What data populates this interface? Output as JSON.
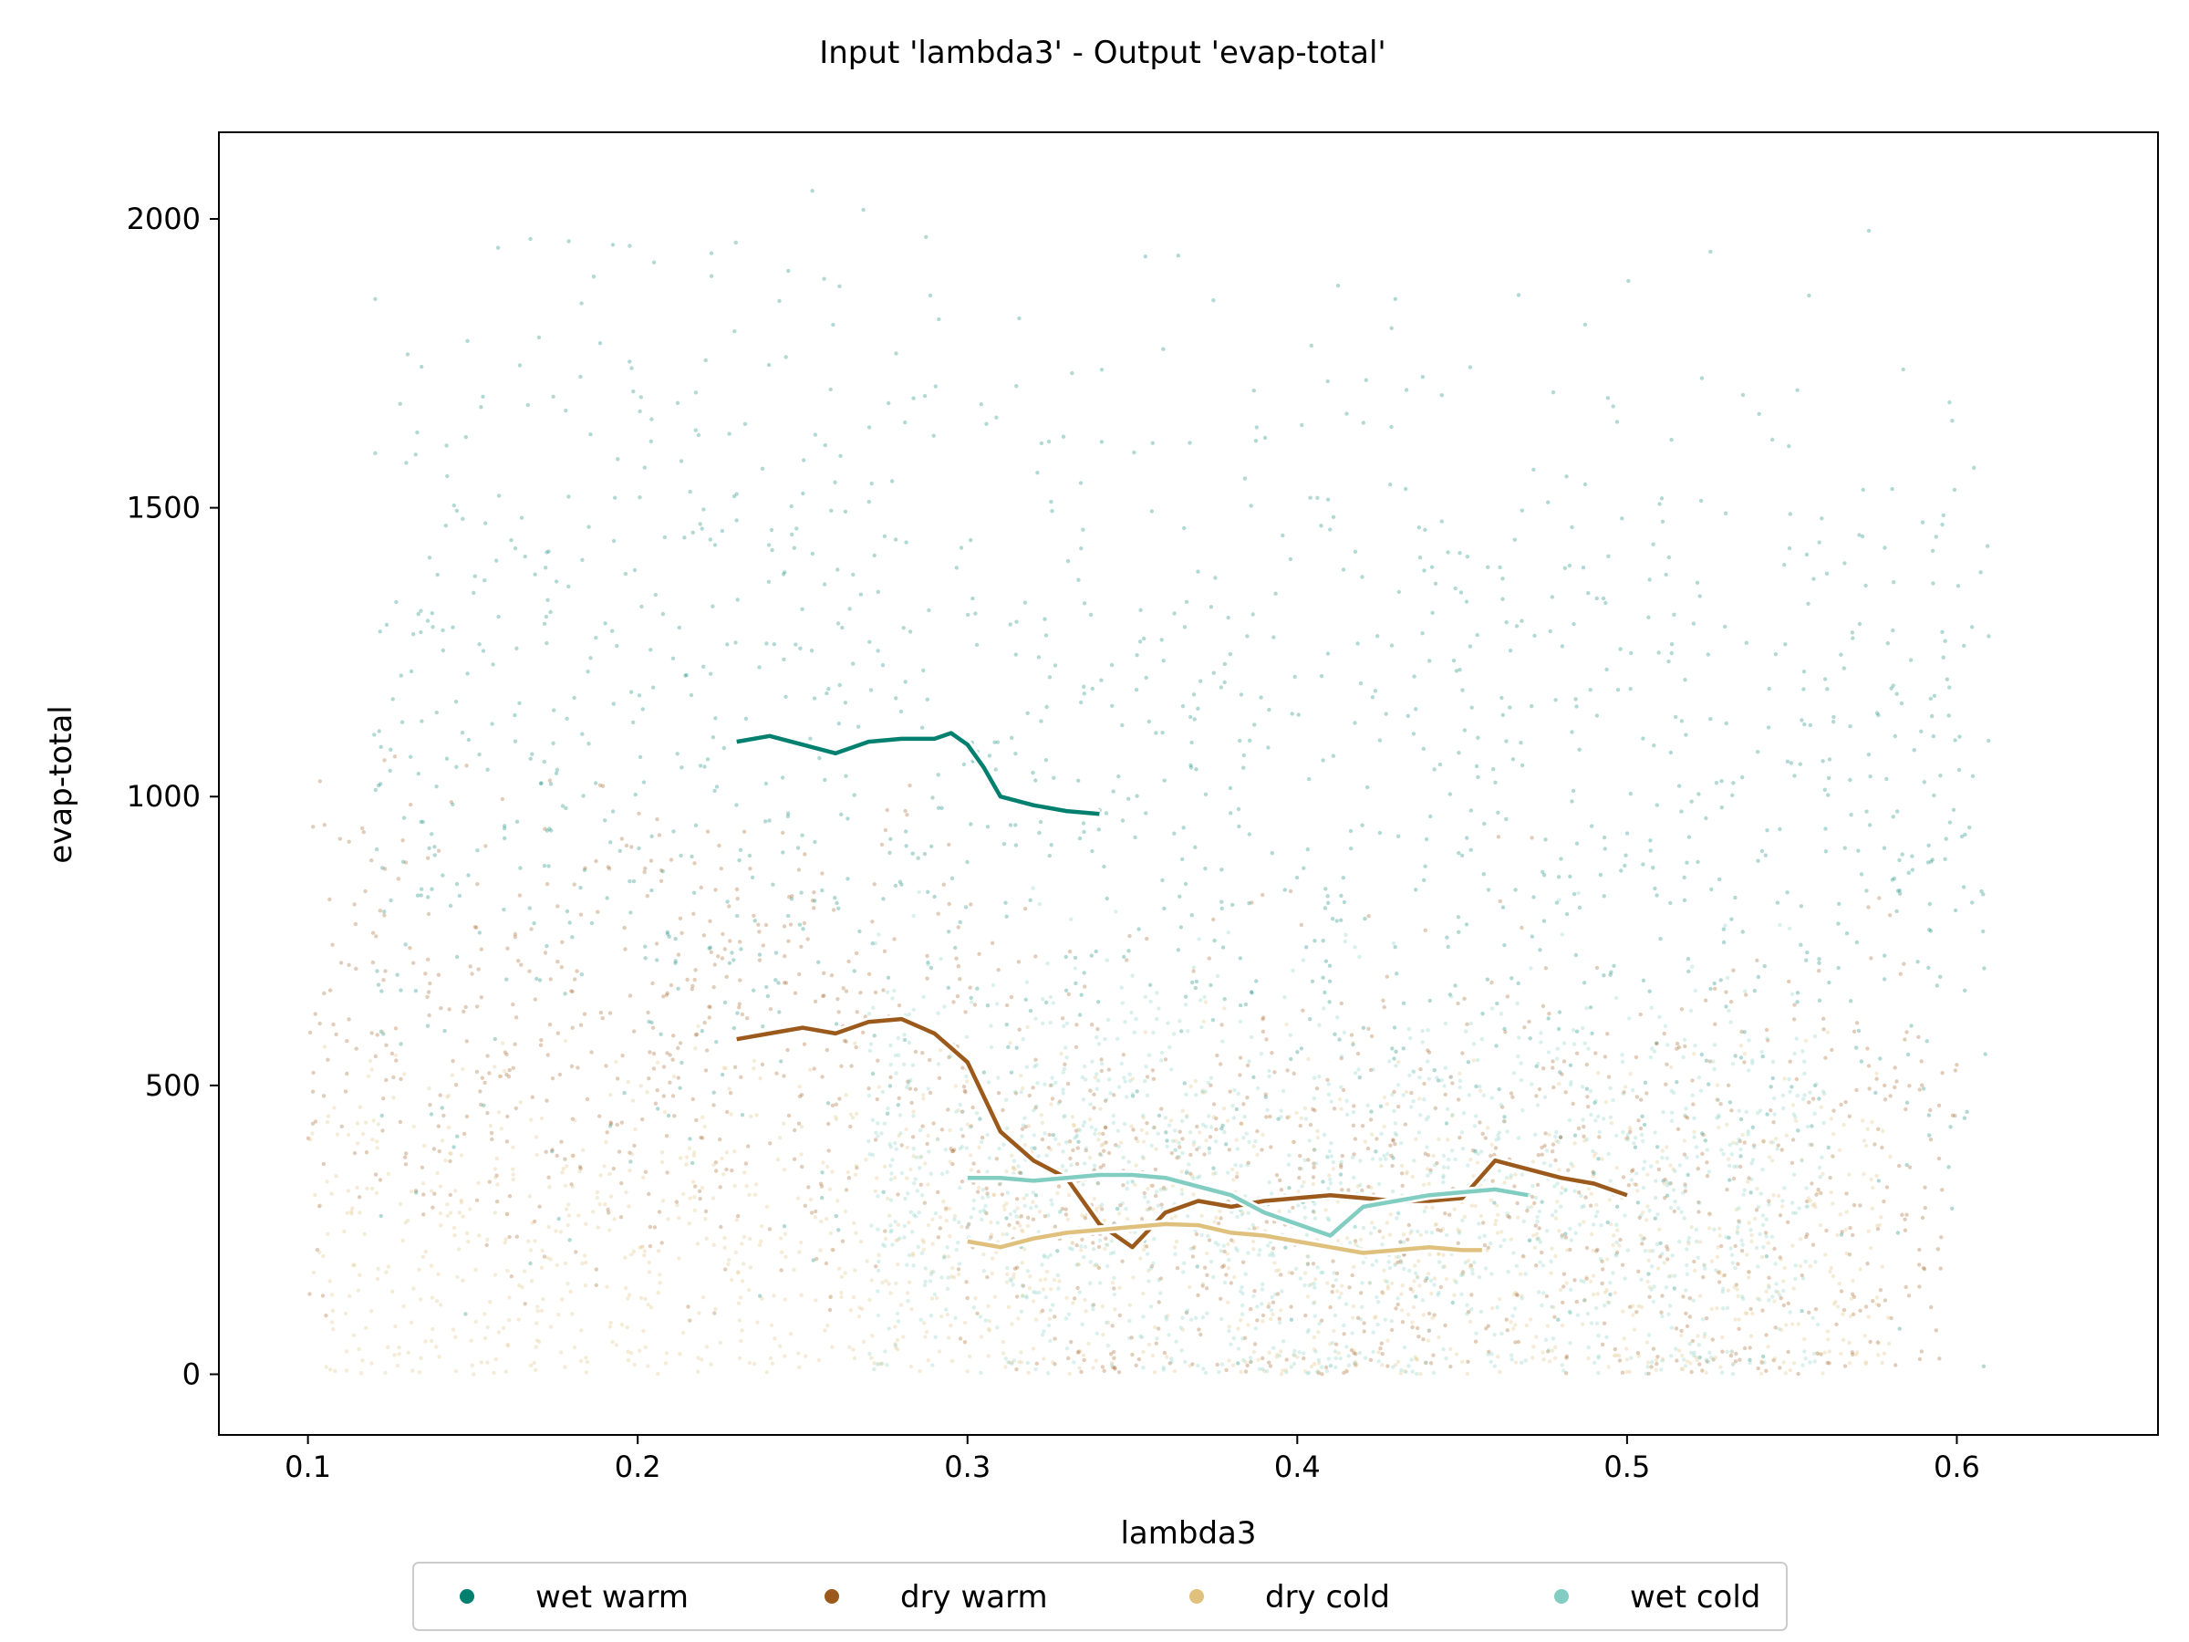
{
  "chart_data": {
    "type": "scatter",
    "title": "Input 'lambda3' - Output 'evap-total'",
    "xlabel": "lambda3",
    "ylabel": "evap-total",
    "xlim": [
      0.073,
      0.661
    ],
    "ylim": [
      -105,
      2150
    ],
    "xticks": [
      0.1,
      0.2,
      0.3,
      0.4,
      0.5,
      0.6
    ],
    "xtick_labels": [
      "0.1",
      "0.2",
      "0.3",
      "0.4",
      "0.5",
      "0.6"
    ],
    "yticks": [
      0,
      500,
      1000,
      1500,
      2000
    ],
    "ytick_labels": [
      "0",
      "500",
      "1000",
      "1500",
      "2000"
    ],
    "grid": false,
    "legend_position": "bottom-center",
    "series": [
      {
        "name": "wet warm",
        "color": "#01806f",
        "scatter_x_range": [
          0.12,
          0.61
        ],
        "scatter_y_range": [
          0,
          2050
        ],
        "trend_line": {
          "x": [
            0.23,
            0.24,
            0.25,
            0.26,
            0.27,
            0.28,
            0.29,
            0.295,
            0.3,
            0.305,
            0.31,
            0.32,
            0.33,
            0.34
          ],
          "y": [
            1095,
            1105,
            1090,
            1075,
            1095,
            1100,
            1100,
            1110,
            1090,
            1050,
            1000,
            985,
            975,
            970
          ]
        }
      },
      {
        "name": "dry warm",
        "color": "#9b5a1b",
        "scatter_x_range": [
          0.1,
          0.6
        ],
        "scatter_y_range": [
          0,
          1100
        ],
        "trend_line": {
          "x": [
            0.23,
            0.24,
            0.25,
            0.26,
            0.27,
            0.28,
            0.29,
            0.3,
            0.31,
            0.32,
            0.33,
            0.34,
            0.35,
            0.36,
            0.37,
            0.38,
            0.39,
            0.4,
            0.41,
            0.42,
            0.43,
            0.44,
            0.45,
            0.46,
            0.47,
            0.48,
            0.49,
            0.5
          ],
          "y": [
            580,
            590,
            600,
            590,
            610,
            615,
            590,
            540,
            420,
            370,
            340,
            260,
            220,
            280,
            300,
            290,
            300,
            305,
            310,
            305,
            300,
            300,
            305,
            370,
            355,
            340,
            330,
            310
          ]
        }
      },
      {
        "name": "dry cold",
        "color": "#dfc07d",
        "scatter_x_range": [
          0.1,
          0.58
        ],
        "scatter_y_range": [
          0,
          800
        ],
        "trend_line": {
          "x": [
            0.3,
            0.31,
            0.32,
            0.33,
            0.34,
            0.35,
            0.36,
            0.37,
            0.38,
            0.39,
            0.4,
            0.41,
            0.42,
            0.43,
            0.44,
            0.45,
            0.456
          ],
          "y": [
            230,
            220,
            235,
            245,
            250,
            255,
            260,
            258,
            245,
            240,
            230,
            220,
            210,
            215,
            220,
            215,
            215
          ]
        }
      },
      {
        "name": "wet cold",
        "color": "#81cdc1",
        "scatter_x_range": [
          0.27,
          0.56
        ],
        "scatter_y_range": [
          0,
          1000
        ],
        "trend_line": {
          "x": [
            0.3,
            0.31,
            0.32,
            0.33,
            0.34,
            0.35,
            0.36,
            0.37,
            0.38,
            0.39,
            0.4,
            0.41,
            0.42,
            0.43,
            0.44,
            0.45,
            0.46,
            0.47
          ],
          "y": [
            340,
            340,
            335,
            340,
            345,
            345,
            340,
            325,
            310,
            280,
            260,
            240,
            290,
            300,
            310,
            315,
            320,
            310
          ]
        }
      }
    ]
  }
}
